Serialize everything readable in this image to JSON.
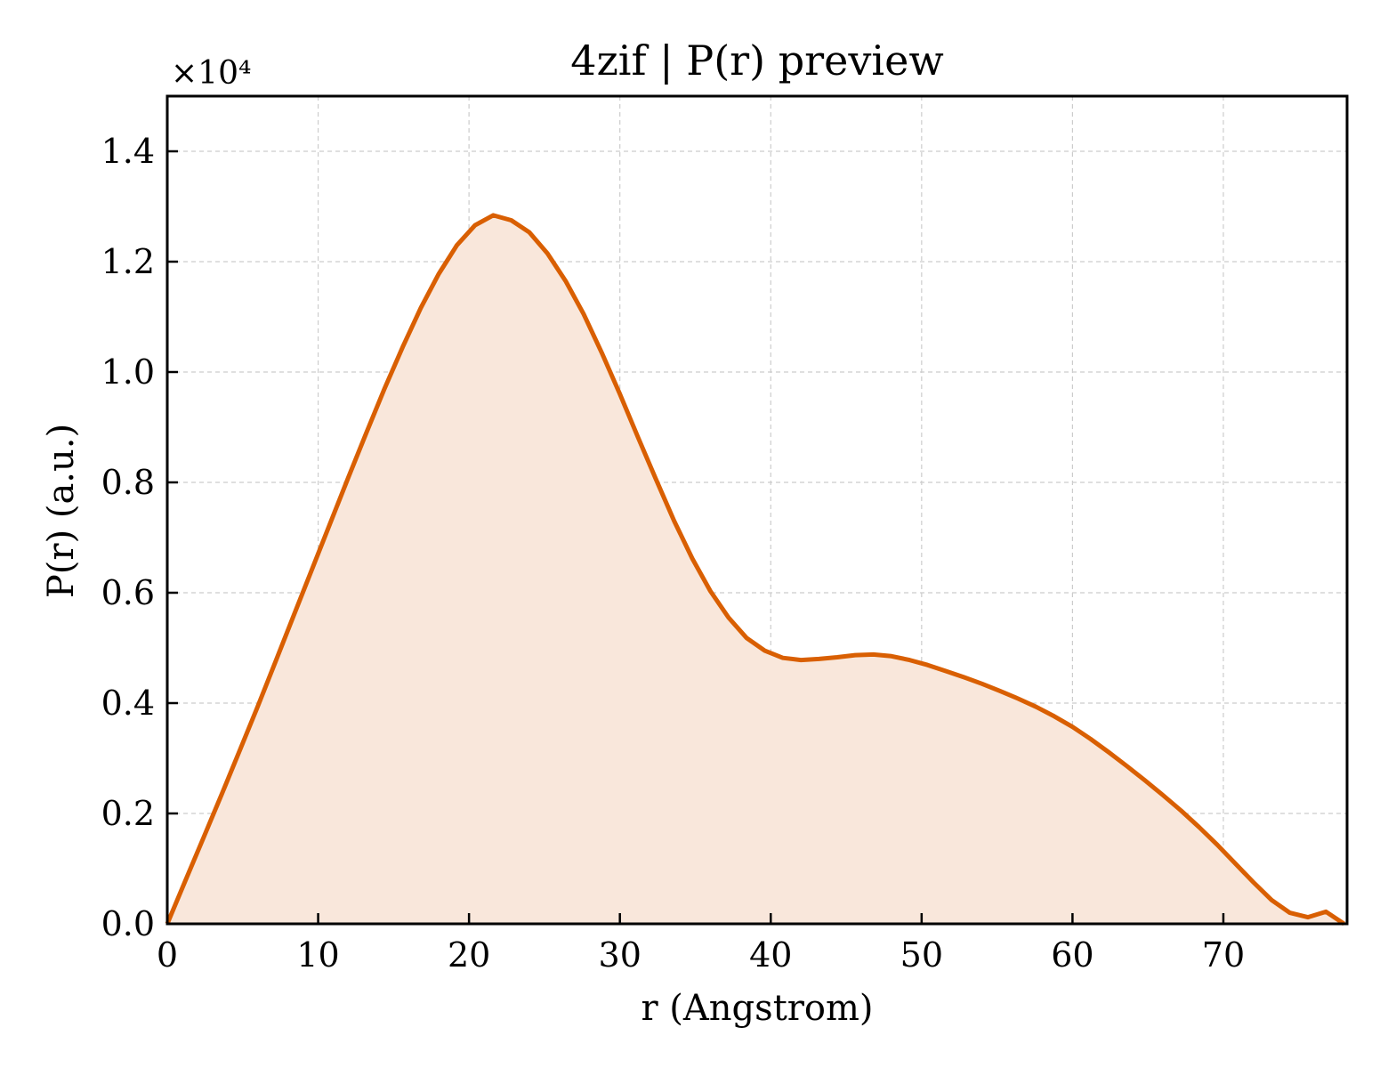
{
  "chart_data": {
    "type": "area",
    "title": "4zif | P(r) preview",
    "xlabel": "r (Angstrom)",
    "ylabel": "P(r) (a.u.)",
    "y_multiplier_label": "×10⁴",
    "xlim": [
      0,
      78.2
    ],
    "ylim": [
      0,
      1.5
    ],
    "x_ticks": [
      0,
      10,
      20,
      30,
      40,
      50,
      60,
      70
    ],
    "x_tick_labels": [
      "0",
      "10",
      "20",
      "30",
      "40",
      "50",
      "60",
      "70"
    ],
    "y_ticks": [
      0,
      0.2,
      0.4,
      0.6,
      0.8,
      1.0,
      1.2,
      1.4
    ],
    "y_tick_labels": [
      "0.0",
      "0.2",
      "0.4",
      "0.6",
      "0.8",
      "1.0",
      "1.2",
      "1.4"
    ],
    "grid": true,
    "line_color": "#d95f02",
    "fill_color": "#f9e7db",
    "series": [
      {
        "x": [
          0,
          1.2,
          2.4,
          3.6,
          4.8,
          6.0,
          7.2,
          8.4,
          9.6,
          10.8,
          12.0,
          13.2,
          14.4,
          15.6,
          16.8,
          18.0,
          19.2,
          20.4,
          21.6,
          22.8,
          24.0,
          25.2,
          26.4,
          27.6,
          28.8,
          30.0,
          31.2,
          32.4,
          33.6,
          34.8,
          36.0,
          37.2,
          38.4,
          39.6,
          40.8,
          42.0,
          43.2,
          44.4,
          45.6,
          46.8,
          48.0,
          49.2,
          50.4,
          51.6,
          52.8,
          54.0,
          55.2,
          56.4,
          57.6,
          58.8,
          60.0,
          61.2,
          62.4,
          63.6,
          64.8,
          66.0,
          67.2,
          68.4,
          69.6,
          70.8,
          72.0,
          73.2,
          74.4,
          75.6,
          76.8,
          78.0
        ],
        "y": [
          0.0,
          0.078,
          0.156,
          0.234,
          0.314,
          0.394,
          0.477,
          0.56,
          0.643,
          0.726,
          0.809,
          0.89,
          0.97,
          1.045,
          1.116,
          1.178,
          1.23,
          1.266,
          1.284,
          1.275,
          1.253,
          1.215,
          1.165,
          1.105,
          1.035,
          0.96,
          0.882,
          0.805,
          0.73,
          0.662,
          0.603,
          0.555,
          0.518,
          0.495,
          0.482,
          0.478,
          0.48,
          0.483,
          0.487,
          0.488,
          0.485,
          0.478,
          0.469,
          0.458,
          0.447,
          0.435,
          0.422,
          0.408,
          0.393,
          0.376,
          0.357,
          0.335,
          0.311,
          0.286,
          0.26,
          0.233,
          0.205,
          0.175,
          0.143,
          0.109,
          0.075,
          0.043,
          0.02,
          0.012,
          0.022,
          0.0
        ]
      }
    ]
  }
}
